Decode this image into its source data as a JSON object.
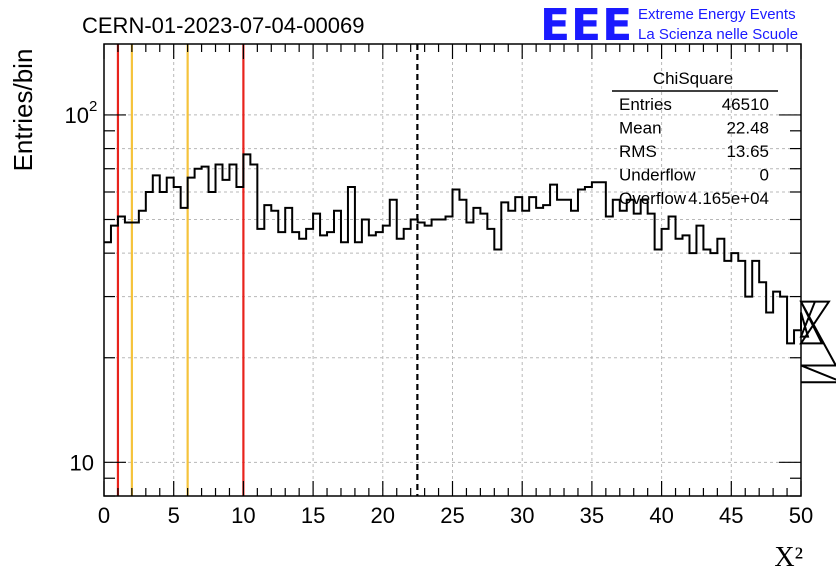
{
  "chart_data": {
    "type": "histogram",
    "title": "CERN-01-2023-07-04-00069",
    "xlabel": "X²",
    "ylabel": "Entries/bin",
    "xlim": [
      0,
      50
    ],
    "ylim": [
      8,
      160
    ],
    "yscale": "log",
    "grid": true,
    "bin_width": 0.5,
    "x_ticks": [
      0,
      5,
      10,
      15,
      20,
      25,
      30,
      35,
      40,
      45,
      50
    ],
    "y_ticks": [
      {
        "value": 10,
        "label": "10"
      },
      {
        "value": 100,
        "label": "10",
        "exponent": "2"
      }
    ],
    "values": [
      43,
      48,
      51,
      49,
      49,
      53,
      60,
      67,
      60,
      66,
      62,
      54,
      66,
      70,
      71,
      60,
      72,
      65,
      72,
      62,
      77,
      72,
      47,
      55,
      53,
      46,
      54,
      46,
      44,
      47,
      52,
      45,
      46,
      53,
      43,
      62,
      43,
      50,
      45,
      46,
      48,
      57,
      44,
      47,
      50,
      49,
      48,
      50,
      50,
      51,
      61,
      57,
      49,
      54,
      52,
      47,
      41,
      56,
      53,
      58,
      53,
      58,
      54,
      55,
      63,
      57,
      57,
      53,
      61,
      62,
      64,
      64,
      51,
      57,
      53,
      57,
      52,
      57,
      52,
      41,
      47,
      51,
      44,
      45,
      40,
      48,
      41,
      40,
      44,
      38,
      40,
      38,
      30,
      38,
      33,
      27,
      31,
      30,
      22,
      24,
      27,
      23,
      29,
      22,
      29,
      19,
      17
    ],
    "vertical_lines": [
      {
        "x": 1,
        "color": "#e8231c",
        "style": "solid"
      },
      {
        "x": 2,
        "color": "#f5c33b",
        "style": "solid"
      },
      {
        "x": 6,
        "color": "#f5c33b",
        "style": "solid"
      },
      {
        "x": 10,
        "color": "#e8231c",
        "style": "solid"
      },
      {
        "x": 22.48,
        "color": "#000000",
        "style": "dashed"
      }
    ],
    "stats_box": {
      "title": "ChiSquare",
      "rows": [
        {
          "label": "Entries",
          "value": "46510"
        },
        {
          "label": "Mean",
          "value": "22.48"
        },
        {
          "label": "RMS",
          "value": "13.65"
        },
        {
          "label": "Underflow",
          "value": "0"
        },
        {
          "label": "Overflow",
          "value": "4.165e+04"
        }
      ]
    }
  },
  "logo": {
    "mark": "EEE",
    "line1": "Extreme Energy Events",
    "line2": "La Scienza nelle Scuole",
    "color": "#1a1aff"
  }
}
